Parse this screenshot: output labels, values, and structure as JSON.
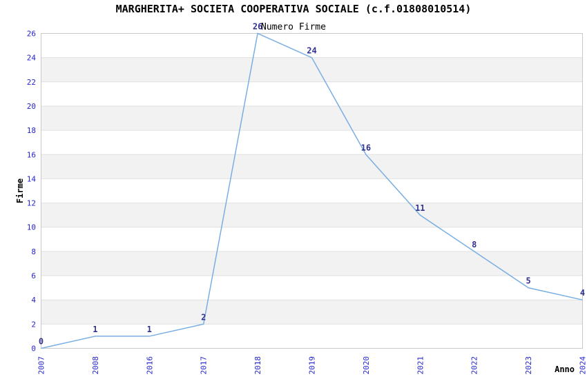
{
  "chart_data": {
    "type": "line",
    "title": "MARGHERITA+ SOCIETA COOPERATIVA SOCIALE (c.f.01808010514)",
    "subtitle": "Numero Firme",
    "xlabel": "Anno",
    "ylabel": "Firme",
    "categories": [
      "2007",
      "2008",
      "2016",
      "2017",
      "2018",
      "2019",
      "2020",
      "2021",
      "2022",
      "2023",
      "2024"
    ],
    "values": [
      0,
      1,
      1,
      2,
      26,
      24,
      16,
      11,
      8,
      5,
      4
    ],
    "data_labels": [
      "0",
      "1",
      "1",
      "2",
      "26",
      "24",
      "16",
      "11",
      "8",
      "5",
      "4"
    ],
    "ylim": [
      0,
      26
    ],
    "y_ticks": [
      0,
      2,
      4,
      6,
      8,
      10,
      12,
      14,
      16,
      18,
      20,
      22,
      24,
      26
    ],
    "grid": "horizontal-lines-with-alternating-bands",
    "legend_position": "none"
  },
  "colors": {
    "line": "#79aee3",
    "tick_label": "#2424cc",
    "data_label": "#32328f",
    "band": "#f2f2f2",
    "gridline": "#e0e0e0",
    "plot_border": "#c8c8c8",
    "text": "#000000",
    "background": "#ffffff"
  }
}
